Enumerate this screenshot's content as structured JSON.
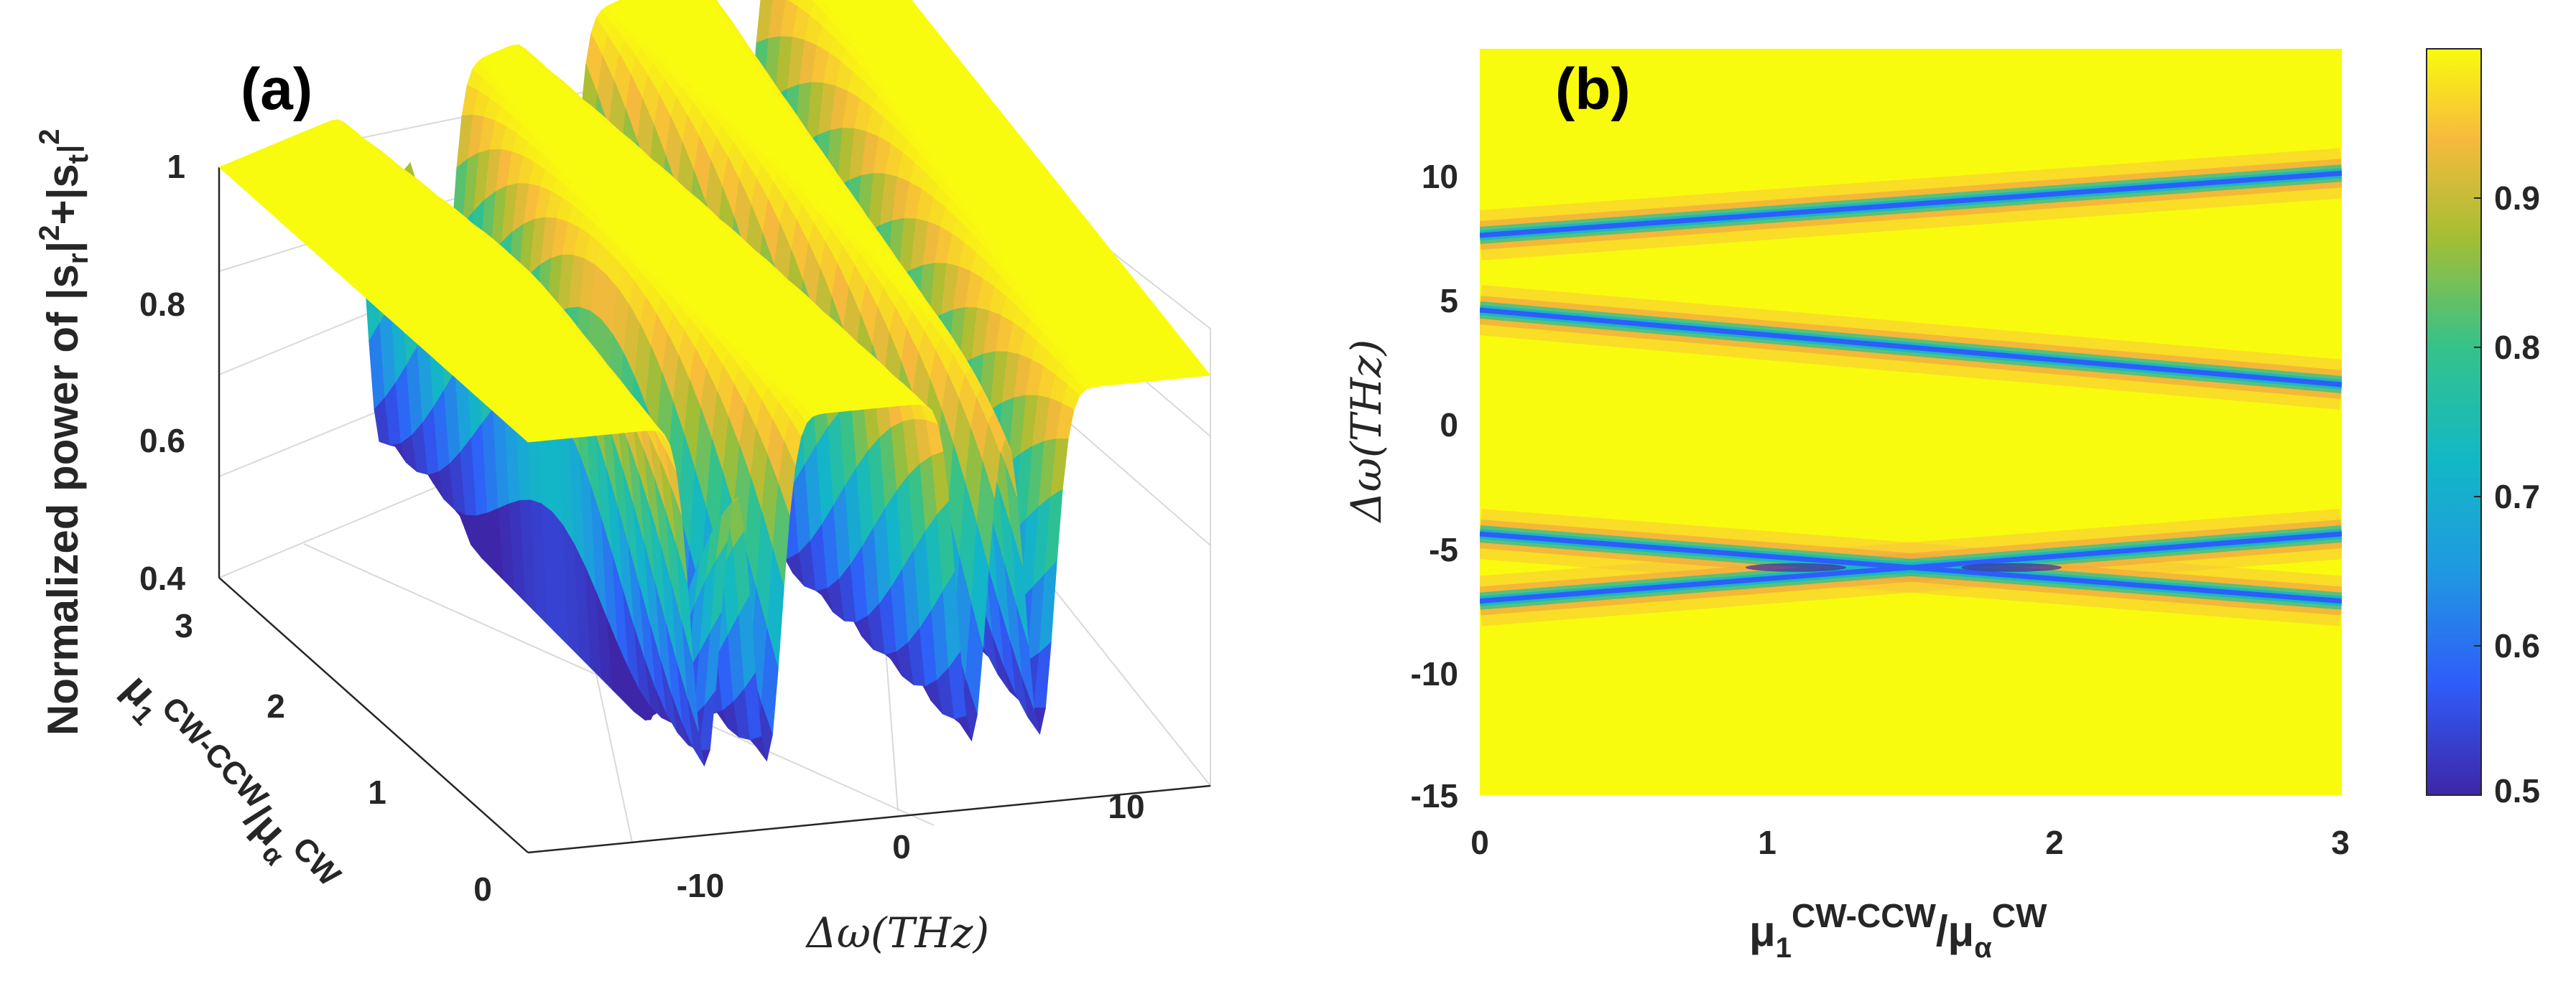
{
  "chart_data": [
    {
      "panel_label": "(a)",
      "type": "surface",
      "zlabel": {
        "prefix": "Normalized power of |s",
        "sub_r": "r",
        "mid": "|",
        "sup1": "2",
        "plus": "+|s",
        "sub_t": "t",
        "sup2": "2"
      },
      "xlabel": {
        "math": "Δω(THz)"
      },
      "ylabel": {
        "mu": "μ",
        "sub1": "1",
        "sup1": "CW-CCW",
        "slash": "/μ",
        "subalpha": "α",
        "sup2": "CW"
      },
      "x_ticks": [
        "-10",
        "0",
        "10"
      ],
      "y_ticks": [
        "0",
        "1",
        "2",
        "3"
      ],
      "z_ticks": [
        "0.4",
        "0.6",
        "0.8",
        "1"
      ],
      "xlim": [
        -15,
        15
      ],
      "ylim": [
        0,
        3
      ],
      "zlim": [
        0.4,
        1
      ],
      "min_power": 0.5,
      "resonances": [
        {
          "name": "upper-branch",
          "at_0": 7.5,
          "at_3": 10.0
        },
        {
          "name": "middle-branch",
          "at_0": 4.5,
          "at_3": 1.5
        },
        {
          "name": "lower-branch-a",
          "at_0": -4.5,
          "at_3": -7.2
        },
        {
          "name": "lower-branch-b",
          "at_0": -7.2,
          "at_3": -4.5
        }
      ]
    },
    {
      "panel_label": "(b)",
      "type": "heatmap",
      "ylabel": {
        "math": "Δω(THz)"
      },
      "xlabel": {
        "mu": "μ",
        "sub1": "1",
        "sup1": "CW-CCW",
        "slash": "/μ",
        "subalpha": "α",
        "sup2": "CW"
      },
      "x_ticks": [
        "0",
        "1",
        "2",
        "3"
      ],
      "y_ticks": [
        "10",
        "5",
        "0",
        "-5",
        "-10",
        "-15"
      ],
      "xlim": [
        0,
        3
      ],
      "ylim": [
        -15,
        15
      ],
      "colorbar": {
        "ticks": [
          "0.9",
          "0.8",
          "0.7",
          "0.6",
          "0.5"
        ],
        "range": [
          0.5,
          1.0
        ]
      },
      "colormap": "parula",
      "resonances": [
        {
          "name": "upper-branch",
          "at_0": 7.5,
          "at_3": 10.0
        },
        {
          "name": "middle-branch",
          "at_0": 4.5,
          "at_3": 1.5
        },
        {
          "name": "lower-branch-a",
          "at_0": -4.5,
          "at_3": -7.2
        },
        {
          "name": "lower-branch-b",
          "at_0": -7.2,
          "at_3": -4.5
        }
      ]
    }
  ]
}
